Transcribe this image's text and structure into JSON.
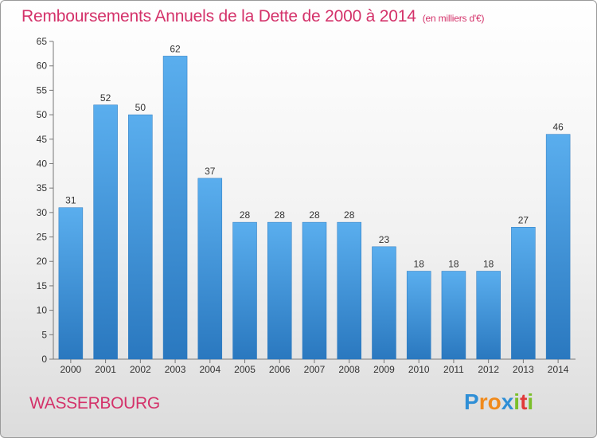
{
  "title": "Remboursements Annuels de la Dette de 2000 à 2014",
  "unit": "(en milliers d'€)",
  "commune": "WASSERBOURG",
  "logo": {
    "letters": [
      "P",
      "r",
      "o",
      "x",
      "i",
      "t",
      "i"
    ],
    "colors": [
      "#2f8fd6",
      "#f08a1c",
      "#f08a1c",
      "#2f8fd6",
      "#7bbf2a",
      "#e03a3a",
      "#7bbf2a"
    ]
  },
  "colors": {
    "bar": "#3f98e0",
    "bar_dark": "#2c7cc3",
    "title": "#d4326a"
  },
  "chart_data": {
    "type": "bar",
    "title": "Remboursements Annuels de la Dette de 2000 à 2014",
    "categories": [
      "2000",
      "2001",
      "2002",
      "2003",
      "2004",
      "2005",
      "2006",
      "2007",
      "2008",
      "2009",
      "2010",
      "2011",
      "2012",
      "2013",
      "2014"
    ],
    "values": [
      31,
      52,
      50,
      62,
      37,
      28,
      28,
      28,
      28,
      23,
      18,
      18,
      18,
      27,
      46
    ],
    "ylim": [
      0,
      65
    ],
    "yticks": [
      0,
      5,
      10,
      15,
      20,
      25,
      30,
      35,
      40,
      45,
      50,
      55,
      60,
      65
    ],
    "grid": false,
    "data_labels": true
  }
}
